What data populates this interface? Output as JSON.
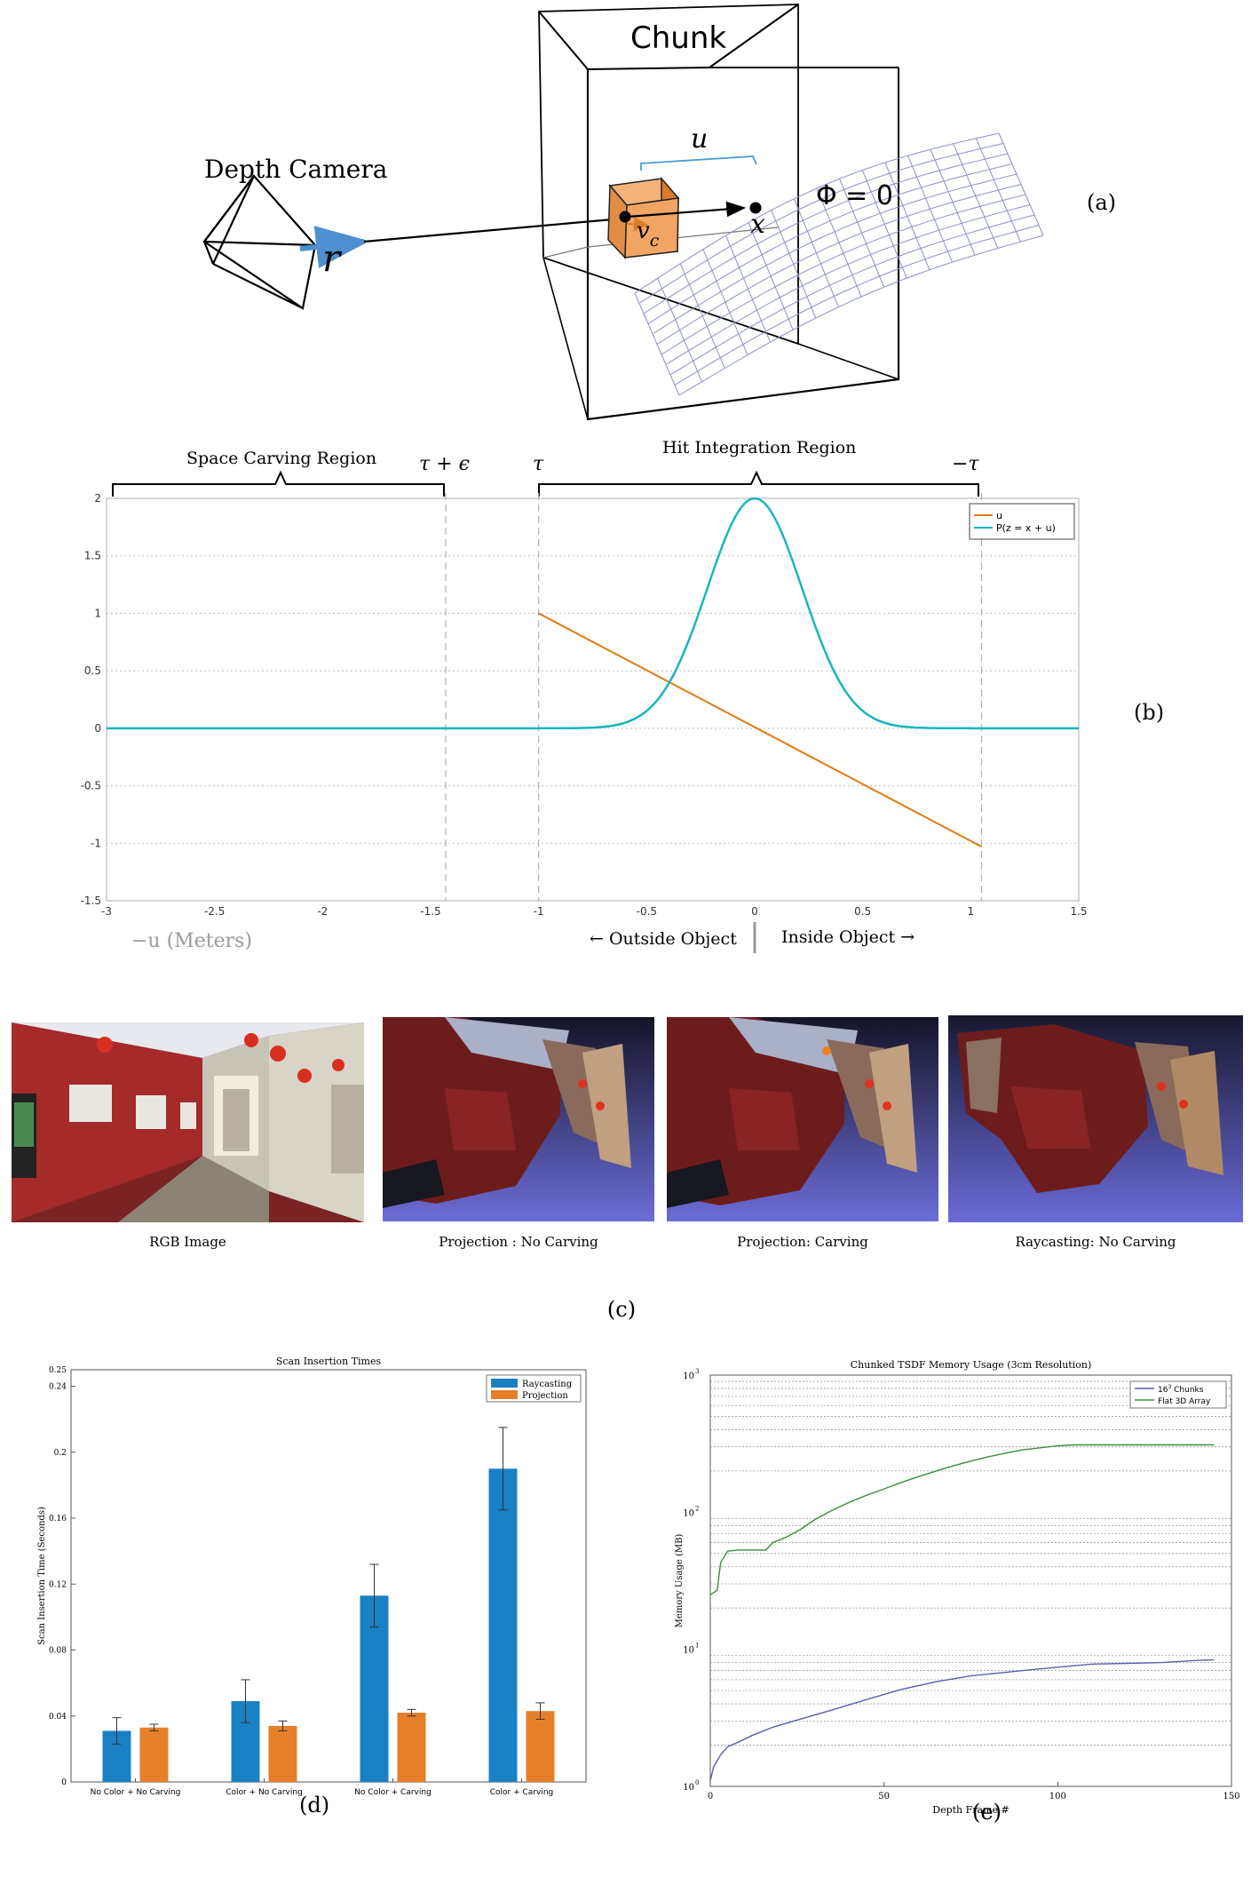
{
  "panel_a": {
    "chunk_label": "Chunk",
    "camera_label": "Depth Camera",
    "u_label": "u",
    "r_label": "r",
    "vc_label": "v",
    "vc_sub": "c",
    "x_label": "x",
    "phi_label": "Φ = 0",
    "tag": "(a)"
  },
  "panel_b": {
    "space_carving_label": "Space Carving Region",
    "tau_eps_label": "τ + ϵ",
    "tau_label": "τ",
    "hit_region_label": "Hit Integration Region",
    "neg_tau_label": "−τ",
    "xlabel": "−u (Meters)",
    "outside_label": "← Outside Object",
    "inside_label": "Inside Object →",
    "tag": "(b)"
  },
  "panel_c": {
    "captions": [
      "RGB Image",
      "Projection : No Carving",
      "Projection: Carving",
      "Raycasting: No Carving"
    ],
    "tag": "(c)"
  },
  "panel_d": {
    "tag": "(d)"
  },
  "panel_e": {
    "tag": "(e)"
  },
  "chart_data": [
    {
      "type": "line",
      "xlim": [
        -3,
        1.5
      ],
      "ylim": [
        -1.5,
        2
      ],
      "xticks": [
        -3,
        -2.5,
        -2,
        -1.5,
        -1,
        -0.5,
        0,
        0.5,
        1,
        1.5
      ],
      "yticks": [
        -1.5,
        -1,
        -0.5,
        0,
        0.5,
        1,
        1.5,
        2
      ],
      "grid": "horizontal",
      "legend_position": "top-right",
      "vlines": [
        -1.43,
        -1,
        1.05
      ],
      "series": [
        {
          "name": "u",
          "color": "#e07b10",
          "x": [
            -1,
            1.05
          ],
          "y": [
            1,
            -1.03
          ]
        },
        {
          "name": "P(z = x + u)",
          "color": "#19b5bd",
          "gaussian": {
            "mu": 0,
            "sigma": 0.22,
            "peak": 2
          },
          "x_range": [
            -3,
            1.5
          ]
        }
      ]
    },
    {
      "type": "bar",
      "title": "Scan Insertion Times",
      "ylabel": "Scan Insertion Time (Seconds)",
      "categories": [
        "No Color + No Carving",
        "Color + No Carving",
        "No Color + Carving",
        "Color + Carving"
      ],
      "ylim": [
        0,
        0.25
      ],
      "yticks": [
        "0",
        "0.04",
        "0.08",
        "0.12",
        "0.16",
        "0.2",
        "0.24",
        "0.25"
      ],
      "legend_position": "top-right",
      "series": [
        {
          "name": "Raycasting",
          "color": "#1a80c4",
          "values": [
            0.031,
            0.049,
            0.113,
            0.19
          ],
          "errors": [
            0.008,
            0.013,
            0.019,
            0.025
          ]
        },
        {
          "name": "Projection",
          "color": "#e57f2a",
          "values": [
            0.033,
            0.034,
            0.042,
            0.043
          ],
          "errors": [
            0.002,
            0.003,
            0.002,
            0.005
          ]
        }
      ]
    },
    {
      "type": "line",
      "title": "Chunked TSDF Memory Usage (3cm Resolution)",
      "xlabel": "Depth Frame #",
      "ylabel": "Memory Usage (MB)",
      "xlim": [
        0,
        150
      ],
      "xticks": [
        "0",
        "50",
        "100",
        "150"
      ],
      "ylog": true,
      "ylim": [
        1,
        1000
      ],
      "yticks": [
        "10",
        "10",
        "10",
        "10"
      ],
      "ytick_exponents": [
        "0",
        "1",
        "2",
        "3"
      ],
      "legend_position": "top-right",
      "series": [
        {
          "name": "Chunks",
          "name_prefix": "16",
          "name_sup": "3",
          "color": "#5a5fb0",
          "x": [
            0,
            1,
            3,
            5,
            8,
            12,
            18,
            25,
            35,
            45,
            55,
            65,
            75,
            90,
            100,
            110,
            120,
            130,
            140,
            145
          ],
          "y": [
            1.1,
            1.4,
            1.7,
            1.95,
            2.1,
            2.35,
            2.7,
            3.05,
            3.6,
            4.3,
            5.1,
            5.8,
            6.4,
            7.0,
            7.4,
            7.8,
            7.9,
            8.0,
            8.3,
            8.4
          ]
        },
        {
          "name": "Flat 3D Array",
          "color": "#3f8f3f",
          "x": [
            0,
            2,
            3,
            5,
            8,
            12,
            16,
            18,
            22,
            26,
            30,
            35,
            40,
            45,
            50,
            55,
            60,
            65,
            70,
            75,
            80,
            85,
            90,
            95,
            100,
            105,
            145
          ],
          "y": [
            25,
            27,
            43,
            52,
            53,
            53,
            53,
            60,
            66,
            75,
            88,
            103,
            118,
            133,
            148,
            165,
            182,
            200,
            218,
            236,
            254,
            270,
            285,
            295,
            305,
            310,
            310
          ]
        }
      ]
    }
  ]
}
